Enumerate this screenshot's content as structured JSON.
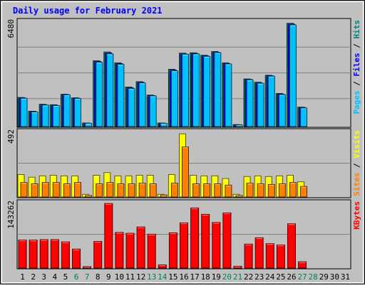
{
  "chart_data": {
    "type": "bar",
    "title": "Daily usage for February 2021",
    "categories": [
      "1",
      "2",
      "3",
      "4",
      "5",
      "6",
      "7",
      "8",
      "9",
      "10",
      "11",
      "12",
      "13",
      "14",
      "15",
      "16",
      "17",
      "18",
      "19",
      "20",
      "21",
      "22",
      "23",
      "24",
      "25",
      "26",
      "27",
      "28",
      "29",
      "30",
      "31"
    ],
    "weekend_days": [
      "6",
      "7",
      "13",
      "14",
      "20",
      "21",
      "27",
      "28"
    ],
    "panels": [
      {
        "name": "hits-files-pages",
        "ymax": 6480,
        "ymax_label": "6480",
        "right_label": [
          {
            "text": "Pages",
            "color": "#00c0ff"
          },
          {
            "text": "Files",
            "color": "#0000ff"
          },
          {
            "text": "Hits",
            "color": "#008080"
          }
        ],
        "series": [
          {
            "name": "Hits",
            "color": "#00805c",
            "values": [
              1800,
              950,
              1380,
              1350,
              2000,
              1780,
              220,
              4080,
              4620,
              3950,
              2450,
              2780,
              1950,
              220,
              3550,
              4550,
              4570,
              4420,
              4650,
              3950,
              120,
              2950,
              2750,
              3180,
              2050,
              6400,
              1200,
              0,
              0,
              0,
              0
            ]
          },
          {
            "name": "Files",
            "color": "#0000ff",
            "values": [
              1770,
              930,
              1350,
              1320,
              1980,
              1760,
              215,
              4030,
              4560,
              3900,
              2400,
              2740,
              1920,
              210,
              3500,
              4500,
              4530,
              4380,
              4600,
              3900,
              115,
              2920,
              2700,
              3150,
              2010,
              6350,
              1180,
              0,
              0,
              0,
              0
            ]
          },
          {
            "name": "Pages",
            "color": "#00c0ff",
            "values": [
              1750,
              900,
              1330,
              1300,
              1960,
              1740,
              200,
              3980,
              4500,
              3850,
              2350,
              2700,
              1900,
              200,
              3450,
              4480,
              4500,
              4350,
              4580,
              3880,
              100,
              2900,
              2680,
              3120,
              1980,
              6300,
              1150,
              0,
              0,
              0,
              0
            ]
          }
        ]
      },
      {
        "name": "visits-sites",
        "ymax": 492,
        "ymax_label": "492",
        "right_label": [
          {
            "text": "Sites",
            "color": "#ff8000"
          },
          {
            "text": "Visits",
            "color": "#ffff00"
          }
        ],
        "series": [
          {
            "name": "Visits",
            "color": "#ffff00",
            "values": [
              170,
              150,
              160,
              165,
              160,
              160,
              20,
              165,
              185,
              160,
              160,
              165,
              165,
              20,
              170,
              480,
              165,
              160,
              160,
              140,
              20,
              155,
              160,
              155,
              160,
              165,
              115,
              0,
              0,
              0,
              0
            ]
          },
          {
            "name": "Sites",
            "color": "#ff8000",
            "values": [
              110,
              100,
              110,
              110,
              100,
              110,
              10,
              100,
              110,
              100,
              100,
              105,
              100,
              15,
              105,
              380,
              100,
              100,
              100,
              90,
              10,
              105,
              100,
              95,
              100,
              110,
              80,
              0,
              0,
              0,
              0
            ]
          }
        ]
      },
      {
        "name": "kbytes",
        "ymax": 143262,
        "ymax_label": "143262",
        "right_label": [
          {
            "text": "KBytes",
            "color": "#ff0000"
          }
        ],
        "series": [
          {
            "name": "KBytes",
            "color": "#ff0000",
            "values": [
              62000,
              62000,
              63000,
              63000,
              58000,
              42000,
              3000,
              59000,
              143000,
              79000,
              77000,
              91000,
              75000,
              7000,
              78000,
              100000,
              133000,
              119000,
              101000,
              122000,
              4000,
              53000,
              67000,
              54000,
              51000,
              98000,
              14000,
              0,
              0,
              0,
              0
            ]
          }
        ]
      }
    ]
  }
}
